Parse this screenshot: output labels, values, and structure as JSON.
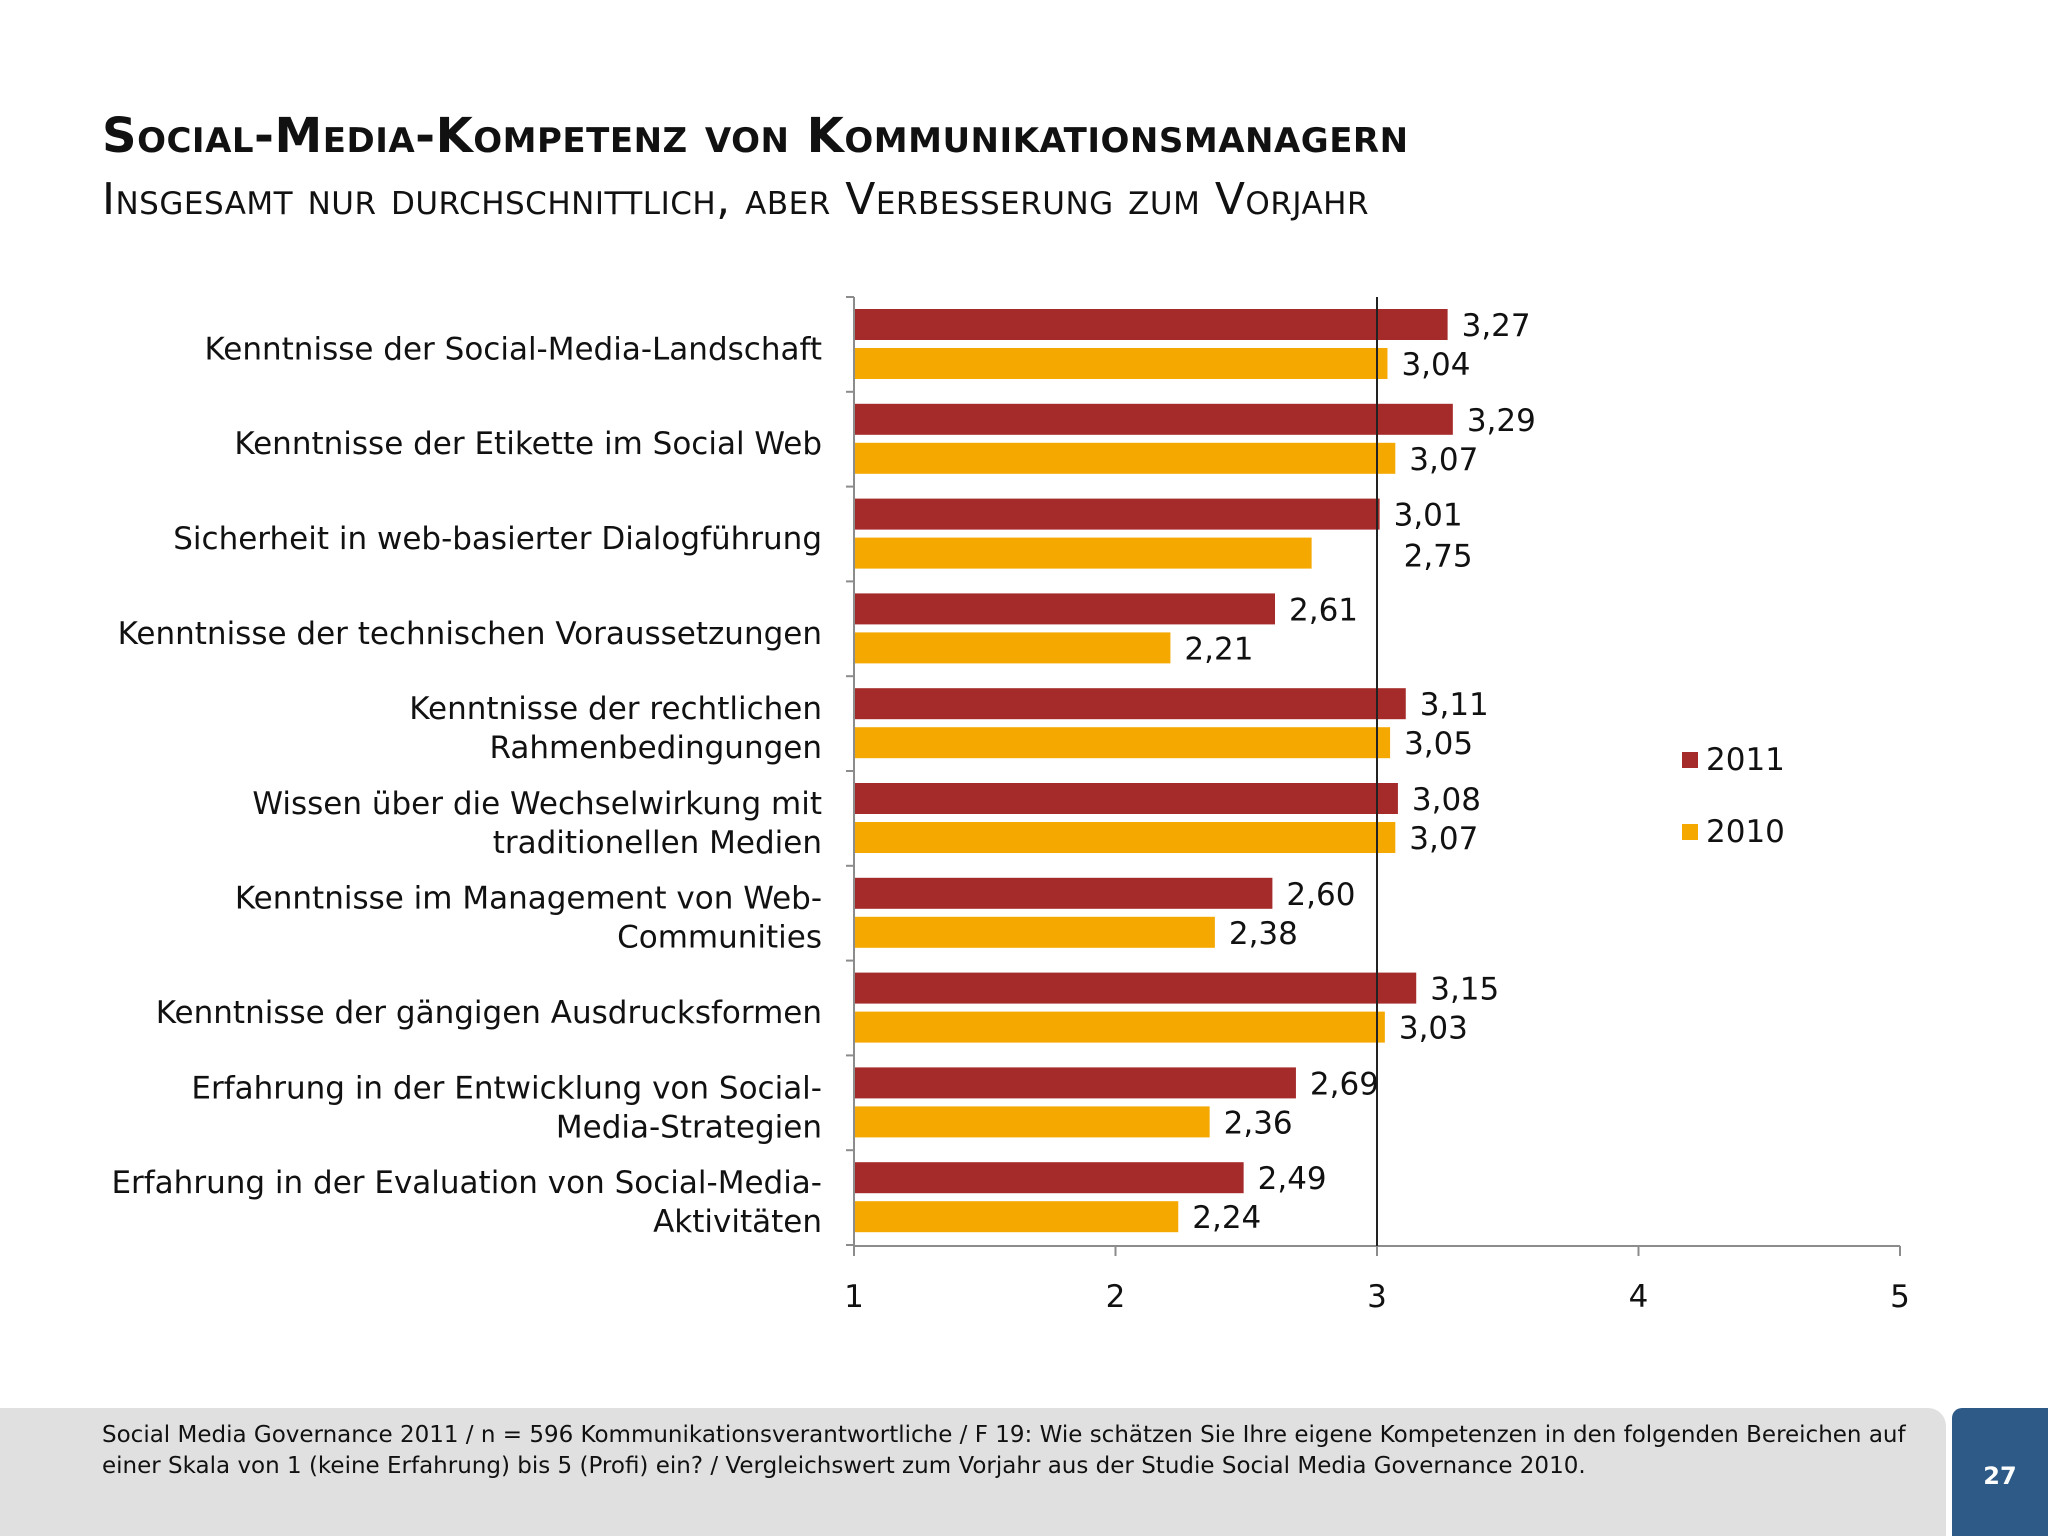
{
  "title": "Social-Media-Kompetenz von Kommunikationsmanagern",
  "subtitle": "Insgesamt nur durchschnittlich, aber Verbesserung zum Vorjahr",
  "footer_note": "Social Media Governance 2011 / n = 596 Kommunikationsverantwortliche / F 19: Wie schätzen Sie Ihre eigene Kompetenzen in den folgenden Bereichen auf einer Skala von 1 (keine Erfahrung) bis 5 (Profi) ein? / Vergleichswert zum Vorjahr aus der Studie Social Media Governance 2010.",
  "page_number": "27",
  "chart_data": {
    "type": "bar",
    "orientation": "horizontal",
    "categories": [
      [
        "Kenntnisse der Social-Media-Landschaft"
      ],
      [
        "Kenntnisse der Etikette im Social Web"
      ],
      [
        "Sicherheit in web-basierter Dialogführung"
      ],
      [
        "Kenntnisse der technischen Voraussetzungen"
      ],
      [
        "Kenntnisse der rechtlichen",
        "Rahmenbedingungen"
      ],
      [
        "Wissen über die Wechselwirkung mit",
        "traditionellen Medien"
      ],
      [
        "Kenntnisse im Management von Web-",
        "Communities"
      ],
      [
        "Kenntnisse der gängigen Ausdrucksformen"
      ],
      [
        "Erfahrung in der Entwicklung von Social-",
        "Media-Strategien"
      ],
      [
        "Erfahrung in der Evaluation von Social-Media-",
        "Aktivitäten"
      ]
    ],
    "series": [
      {
        "name": "2011",
        "color": "#a52a2a",
        "values": [
          3.27,
          3.29,
          3.01,
          2.61,
          3.11,
          3.08,
          2.6,
          3.15,
          2.69,
          2.49
        ],
        "labels": [
          "3,27",
          "3,29",
          "3,01",
          "2,61",
          "3,11",
          "3,08",
          "2,60",
          "3,15",
          "2,69",
          "2,49"
        ]
      },
      {
        "name": "2010",
        "color": "#f5a800",
        "values": [
          3.04,
          3.07,
          2.75,
          2.21,
          3.05,
          3.07,
          2.38,
          3.03,
          2.36,
          2.24
        ],
        "labels": [
          "3,04",
          "3,07",
          "2,75",
          "2,21",
          "3,05",
          "3,07",
          "2,38",
          "3,03",
          "2,36",
          "2,24"
        ]
      }
    ],
    "xlim": [
      1,
      5
    ],
    "xticks": [
      "1",
      "2",
      "3",
      "4",
      "5"
    ],
    "reference_line": 3,
    "legend_position": "right",
    "grid": false
  }
}
